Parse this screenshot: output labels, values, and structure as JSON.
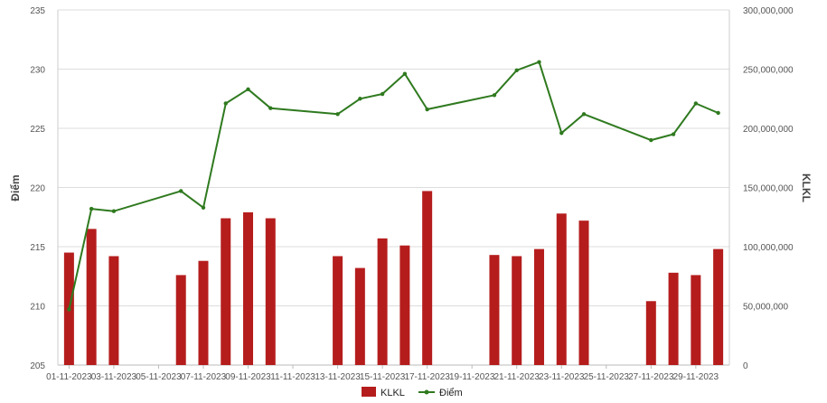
{
  "chart_data": {
    "type": "bar+line",
    "title": "",
    "x": [
      "01-11-2023",
      "02-11-2023",
      "03-11-2023",
      "06-11-2023",
      "07-11-2023",
      "08-11-2023",
      "09-11-2023",
      "10-11-2023",
      "13-11-2023",
      "14-11-2023",
      "15-11-2023",
      "16-11-2023",
      "17-11-2023",
      "20-11-2023",
      "21-11-2023",
      "22-11-2023",
      "23-11-2023",
      "24-11-2023",
      "27-11-2023",
      "28-11-2023",
      "29-11-2023",
      "30-11-2023"
    ],
    "x_ticks": [
      "01-11-2023",
      "03-11-2023",
      "05-11-2023",
      "07-11-2023",
      "09-11-2023",
      "11-11-2023",
      "13-11-2023",
      "15-11-2023",
      "17-11-2023",
      "19-11-2023",
      "21-11-2023",
      "23-11-2023",
      "25-11-2023",
      "27-11-2023",
      "29-11-2023"
    ],
    "x_range": [
      "01-11-2023",
      "30-11-2023"
    ],
    "series": [
      {
        "name": "KLKL",
        "kind": "bar",
        "axis": "right",
        "color": "#b51d1d",
        "values": [
          95000000,
          115000000,
          92000000,
          76000000,
          88000000,
          124000000,
          129000000,
          124000000,
          92000000,
          82000000,
          107000000,
          101000000,
          147000000,
          93000000,
          92000000,
          98000000,
          128000000,
          122000000,
          54000000,
          78000000,
          76000000,
          98000000
        ]
      },
      {
        "name": "Điểm",
        "kind": "line",
        "axis": "left",
        "color": "#2f7a1f",
        "values": [
          209.7,
          218.2,
          218.0,
          219.7,
          218.3,
          227.1,
          228.3,
          226.7,
          226.2,
          227.5,
          227.9,
          229.6,
          226.6,
          227.8,
          229.9,
          230.6,
          224.6,
          226.2,
          224.0,
          224.5,
          227.1,
          226.3
        ]
      }
    ],
    "y_left": {
      "label": "Điểm",
      "min": 205,
      "max": 235,
      "ticks": [
        "205",
        "210",
        "215",
        "220",
        "225",
        "230",
        "235"
      ]
    },
    "y_right": {
      "label": "KLKL",
      "min": 0,
      "max": 300000000,
      "ticks": [
        "0",
        "50,000,000",
        "100,000,000",
        "150,000,000",
        "200,000,000",
        "250,000,000",
        "300,000,000"
      ]
    },
    "grid": true,
    "legend": {
      "position": "bottom-center",
      "items": [
        "KLKL",
        "Điểm"
      ]
    }
  }
}
